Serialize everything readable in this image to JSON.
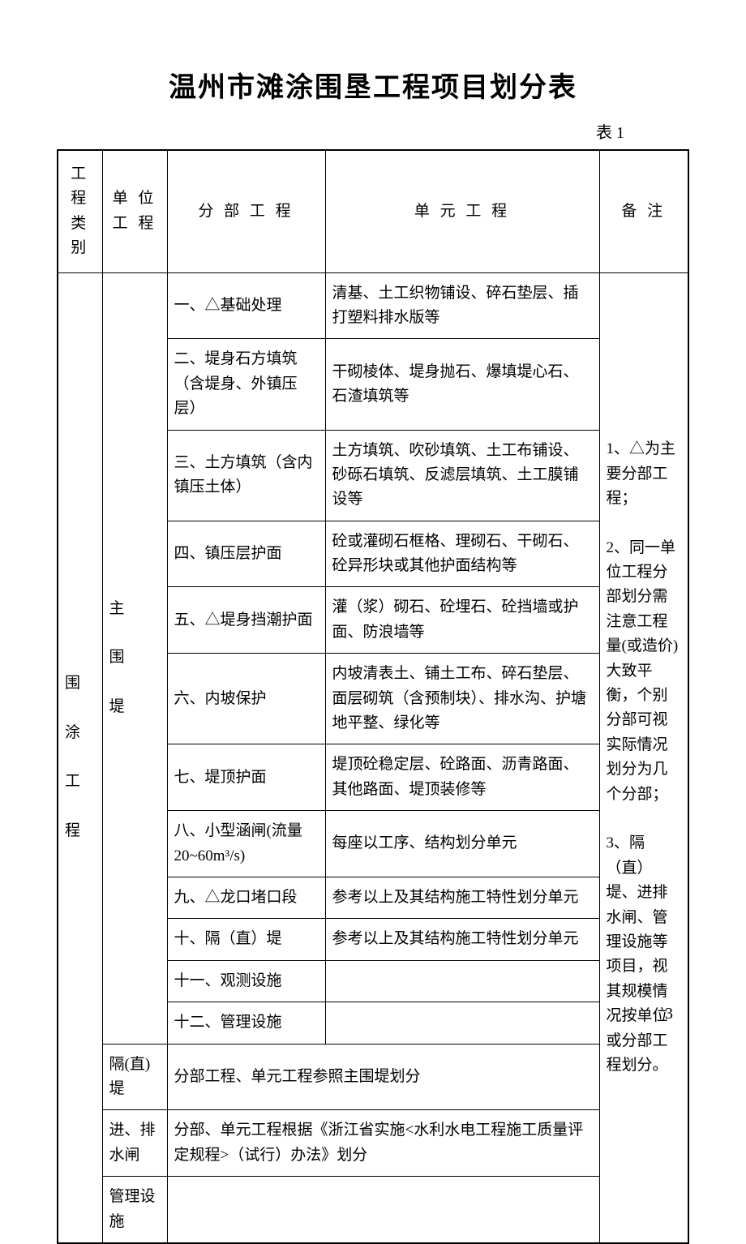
{
  "document": {
    "title": "温州市滩涂围垦工程项目划分表",
    "table_label": "表 1",
    "page_number": "3",
    "headers": {
      "category": "工程类别",
      "unit": "单 位工 程",
      "sub": "分 部 工 程",
      "element": "单 元 工 程",
      "remark": "备  注"
    },
    "category_label": "围涂工程",
    "unit_labels": {
      "main_dike": "主围堤",
      "sep_dike": "隔(直)堤",
      "sluice": "进、排水闸",
      "mgmt": "管理设施"
    },
    "rows": [
      {
        "sub": "一、△基础处理",
        "element": "清基、土工织物铺设、碎石垫层、插打塑料排水版等"
      },
      {
        "sub": "二、堤身石方填筑（含堤身、外镇压层）",
        "element": "干砌棱体、堤身抛石、爆填堤心石、石渣填筑等"
      },
      {
        "sub": "三、土方填筑（含内镇压土体）",
        "element": "土方填筑、吹砂填筑、土工布铺设、砂砾石填筑、反滤层填筑、土工膜铺设等"
      },
      {
        "sub": "四、镇压层护面",
        "element": "砼或灌砌石框格、理砌石、干砌石、砼异形块或其他护面结构等"
      },
      {
        "sub": "五、△堤身挡潮护面",
        "element": "灌（浆）砌石、砼埋石、砼挡墙或护面、防浪墙等"
      },
      {
        "sub": "六、内坡保护",
        "element": "内坡清表土、铺土工布、碎石垫层、面层砌筑（含预制块）、排水沟、护塘地平整、绿化等"
      },
      {
        "sub": "七、堤顶护面",
        "element": "堤顶砼稳定层、砼路面、沥青路面、其他路面、堤顶装修等"
      },
      {
        "sub": "八、小型涵闸(流量 20~60m³/s)",
        "element": "每座以工序、结构划分单元"
      },
      {
        "sub": "九、△龙口堵口段",
        "element": "参考以上及其结构施工特性划分单元"
      },
      {
        "sub": "十、隔（直）堤",
        "element": "参考以上及其结构施工特性划分单元"
      },
      {
        "sub": "十一、观测设施",
        "element": ""
      },
      {
        "sub": "十二、管理设施",
        "element": ""
      }
    ],
    "sep_dike_text": "分部工程、单元工程参照主围堤划分",
    "sluice_text": "分部、单元工程根据《浙江省实施<水利水电工程施工质量评定规程>（试行）办法》划分",
    "remark_text": "1、△为主要分部工程；\n\n2、同一单位工程分部划分需注意工程量(或造价)大致平衡，个别分部可视实际情况划分为几个分部；\n\n3、隔（直）堤、进排水闸、管理设施等项目，视其规模情况按单位或分部工程划分。"
  },
  "style": {
    "background_color": "#ffffff",
    "border_color": "#000000",
    "title_fontsize": 34,
    "body_fontsize": 19,
    "remark_fontsize": 18
  }
}
